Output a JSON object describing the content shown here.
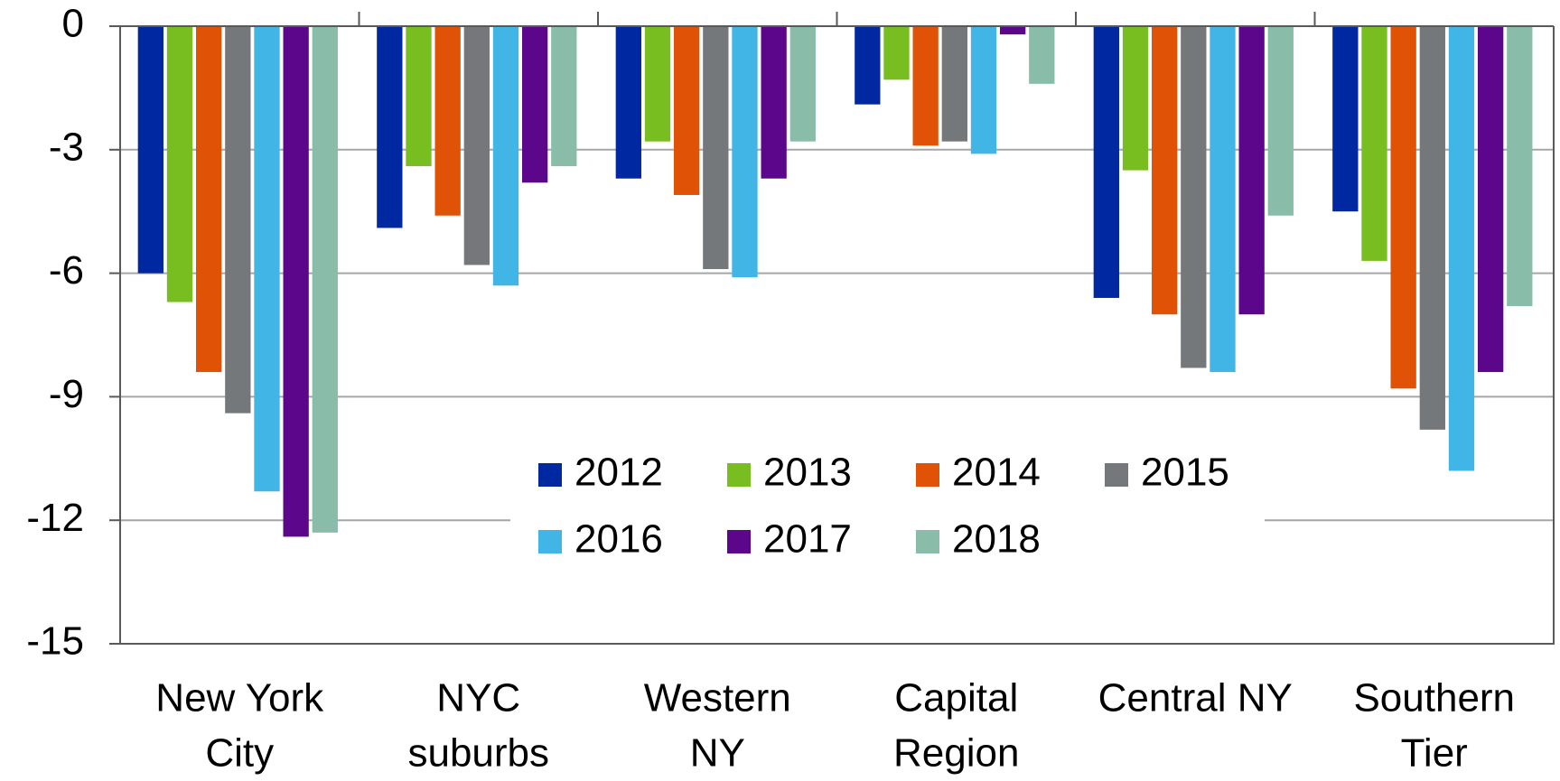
{
  "chart_data": {
    "type": "bar",
    "categories": [
      [
        "New York",
        "City"
      ],
      [
        "NYC",
        "suburbs"
      ],
      [
        "Western",
        "NY"
      ],
      [
        "Capital",
        "Region"
      ],
      [
        "Central NY"
      ],
      [
        "Southern",
        "Tier"
      ]
    ],
    "series": [
      {
        "name": "2012",
        "color": "#0028a0",
        "values": [
          -6.0,
          -4.9,
          -3.7,
          -1.9,
          -6.6,
          -4.5
        ]
      },
      {
        "name": "2013",
        "color": "#78be20",
        "values": [
          -6.7,
          -3.4,
          -2.8,
          -1.3,
          -3.5,
          -5.7
        ]
      },
      {
        "name": "2014",
        "color": "#e05206",
        "values": [
          -8.4,
          -4.6,
          -4.1,
          -2.9,
          -7.0,
          -8.8
        ]
      },
      {
        "name": "2015",
        "color": "#75787b",
        "values": [
          -9.4,
          -5.8,
          -5.9,
          -2.8,
          -8.3,
          -9.8
        ]
      },
      {
        "name": "2016",
        "color": "#41b6e6",
        "values": [
          -11.3,
          -6.3,
          -6.1,
          -3.1,
          -8.4,
          -10.8
        ]
      },
      {
        "name": "2017",
        "color": "#5c068c",
        "values": [
          -12.4,
          -3.8,
          -3.7,
          -0.2,
          -7.0,
          -8.4
        ]
      },
      {
        "name": "2018",
        "color": "#8abda9",
        "values": [
          -12.3,
          -3.4,
          -2.8,
          -1.4,
          -4.6,
          -6.8
        ]
      }
    ],
    "ylim": [
      -15,
      0
    ],
    "yticks": [
      -15,
      -12,
      -9,
      -6,
      -3,
      0
    ],
    "grid": true,
    "legend": "center"
  }
}
